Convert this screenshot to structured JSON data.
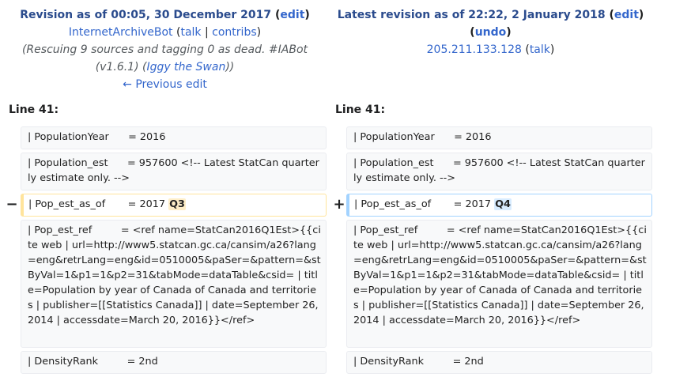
{
  "left_header": {
    "title_prefix": "Revision as of 00:05, 30 December 2017",
    "edit_label": "edit",
    "user": "InternetArchiveBot",
    "talk_label": "talk",
    "contribs_label": "contribs",
    "summary_part1": "(Rescuing 9 sources and tagging 0 as dead. #IABot",
    "summary_part2_a": "(v1.6.1) (",
    "summary_link": "Iggy the Swan",
    "summary_part2_b": "))",
    "prev_edit_label": "← Previous edit"
  },
  "right_header": {
    "title_prefix": "Latest revision as of 22:22, 2 January 2018",
    "edit_label": "edit",
    "undo_label": "undo",
    "user": "205.211.133.128",
    "talk_label": "talk"
  },
  "line_label": "Line 41:",
  "rows": {
    "r1": {
      "left": "| PopulationYear      = 2016",
      "right": "| PopulationYear      = 2016"
    },
    "r2": {
      "left": "| Population_est      = 957600 <!-- Latest StatCan quarterly estimate only. -->",
      "right": "| Population_est      = 957600 <!-- Latest StatCan quarterly estimate only. -->"
    },
    "r3": {
      "left_prefix": "| Pop_est_as_of       = 2017 ",
      "left_change": "Q3",
      "right_prefix": "| Pop_est_as_of       = 2017 ",
      "right_change": "Q4",
      "del_marker": "−",
      "add_marker": "+"
    },
    "r4": {
      "left": "| Pop_est_ref         = <ref name=StatCan2016Q1Est>{{cite web | url=http://www5.statcan.gc.ca/cansim/a26?lang=eng&retrLang=eng&id=0510005&paSer=&pattern=&stByVal=1&p1=1&p2=31&tabMode=dataTable&csid= | title=Population by year of Canada of Canada and territories | publisher=[[Statistics Canada]] | date=September 26, 2014 | accessdate=March 20, 2016}}</ref>",
      "right": "| Pop_est_ref         = <ref name=StatCan2016Q1Est>{{cite web | url=http://www5.statcan.gc.ca/cansim/a26?lang=eng&retrLang=eng&id=0510005&paSer=&pattern=&stByVal=1&p1=1&p2=31&tabMode=dataTable&csid= | title=Population by year of Canada of Canada and territories | publisher=[[Statistics Canada]] | date=September 26, 2014 | accessdate=March 20, 2016}}</ref>"
    },
    "r5": {
      "left": "| DensityRank         = 2nd",
      "right": "| DensityRank         = 2nd"
    }
  },
  "colors": {
    "link": "#3366cc",
    "deleted_border": "#ffe49c",
    "added_border": "#a3d3ff"
  }
}
